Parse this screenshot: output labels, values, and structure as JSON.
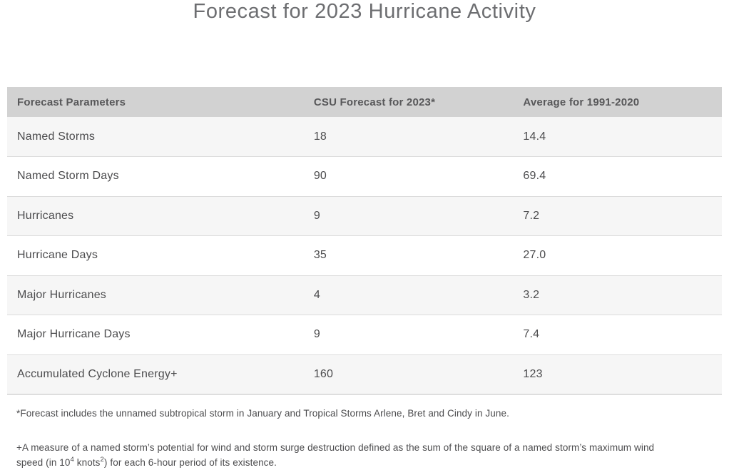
{
  "page": {
    "title": "Forecast for 2023 Hurricane Activity"
  },
  "chart_data": {
    "type": "table",
    "title": "Forecast for 2023 Hurricane Activity",
    "columns": [
      "Forecast Parameters",
      "CSU Forecast for 2023*",
      "Average for 1991-2020"
    ],
    "rows": [
      [
        "Named Storms",
        "18",
        "14.4"
      ],
      [
        "Named Storm Days",
        "90",
        "69.4"
      ],
      [
        "Hurricanes",
        "9",
        "7.2"
      ],
      [
        "Hurricane Days",
        "35",
        "27.0"
      ],
      [
        "Major Hurricanes",
        "4",
        "3.2"
      ],
      [
        "Major Hurricane Days",
        "9",
        "7.4"
      ],
      [
        "Accumulated Cyclone Energy+",
        "160",
        "123"
      ]
    ],
    "layout": {
      "header_background": "#d2d2d2",
      "alt_row_background": "#f6f6f6",
      "row_border_color": "#dcdcdc",
      "header_text_color": "#58585a",
      "body_text_color": "#4c4c4e",
      "title_color": "#6d6e71"
    }
  },
  "footnotes": {
    "star": "*Forecast includes the unnamed subtropical storm in January and Tropical Storms Arlene, Bret and Cindy in June.",
    "plus_line1": "+A measure of a named storm’s potential for wind and storm surge destruction defined as the sum of the square of a named storm’s maximum wind",
    "plus_line2_part1": "speed (in 10",
    "plus_line2_sup1": "4",
    "plus_line2_part2": " knots",
    "plus_line2_sup2": "2",
    "plus_line2_part3": ") for each 6-hour period of its existence."
  }
}
